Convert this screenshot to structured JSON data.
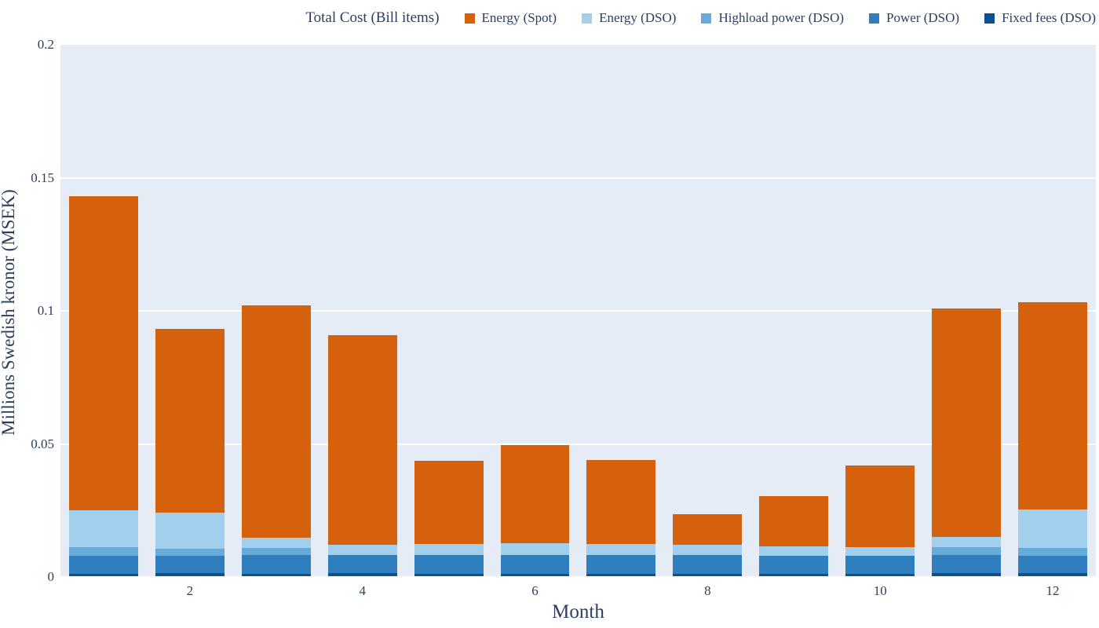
{
  "colors": {
    "paper_bg": "#ffffff",
    "plot_bg": "#e5ecf6",
    "grid": "#ffffff",
    "text": "#2a3f5f"
  },
  "chart_data": {
    "type": "bar",
    "stacked": true,
    "legend_title": "Total Cost (Bill items)",
    "xlabel": "Month",
    "ylabel": "Millions Swedish kronor (MSEK)",
    "x": [
      1,
      2,
      3,
      4,
      5,
      6,
      7,
      8,
      9,
      10,
      11,
      12
    ],
    "xticks": [
      2,
      4,
      6,
      8,
      10,
      12
    ],
    "yticks": [
      0,
      0.05,
      0.1,
      0.15,
      0.2
    ],
    "ytick_labels": [
      "0",
      "0.05",
      "0.1",
      "0.15",
      "0.2"
    ],
    "ylim": [
      0,
      0.2
    ],
    "bar_gap_fraction": 0.2,
    "grid": true,
    "legend_position": "top-right-horizontal",
    "series": [
      {
        "name": "Energy (Spot)",
        "color": "#d6610d",
        "values": [
          0.118,
          0.069,
          0.0872,
          0.0788,
          0.0312,
          0.0369,
          0.0317,
          0.0115,
          0.019,
          0.0309,
          0.086,
          0.078
        ]
      },
      {
        "name": "Energy (DSO)",
        "color": "#a2cfec",
        "values": [
          0.014,
          0.0136,
          0.004,
          0.0036,
          0.0041,
          0.0044,
          0.0041,
          0.0039,
          0.0036,
          0.0032,
          0.0037,
          0.0145
        ]
      },
      {
        "name": "Highload power (DSO)",
        "color": "#66abd9",
        "values": [
          0.003,
          0.0025,
          0.0024,
          0.0,
          0.0,
          0.0,
          0.0,
          0.0,
          0.0,
          0.0,
          0.0029,
          0.0028
        ]
      },
      {
        "name": "Power (DSO)",
        "color": "#2f7fbf",
        "values": [
          0.0068,
          0.0067,
          0.0071,
          0.0069,
          0.0071,
          0.0071,
          0.0069,
          0.0069,
          0.0066,
          0.0066,
          0.007,
          0.0066
        ]
      },
      {
        "name": "Fixed fees (DSO)",
        "color": "#0a5191",
        "values": [
          0.0013,
          0.0014,
          0.0013,
          0.0015,
          0.0013,
          0.0013,
          0.0013,
          0.0013,
          0.0013,
          0.0013,
          0.0014,
          0.0014
        ]
      }
    ],
    "totals": [
      0.1431,
      0.0932,
      0.102,
      0.0908,
      0.0437,
      0.0497,
      0.044,
      0.0236,
      0.0305,
      0.042,
      0.101,
      0.1033
    ],
    "notes": "series listed in legend order (top of stack first); stacking order bottom-to-top is the reverse"
  }
}
